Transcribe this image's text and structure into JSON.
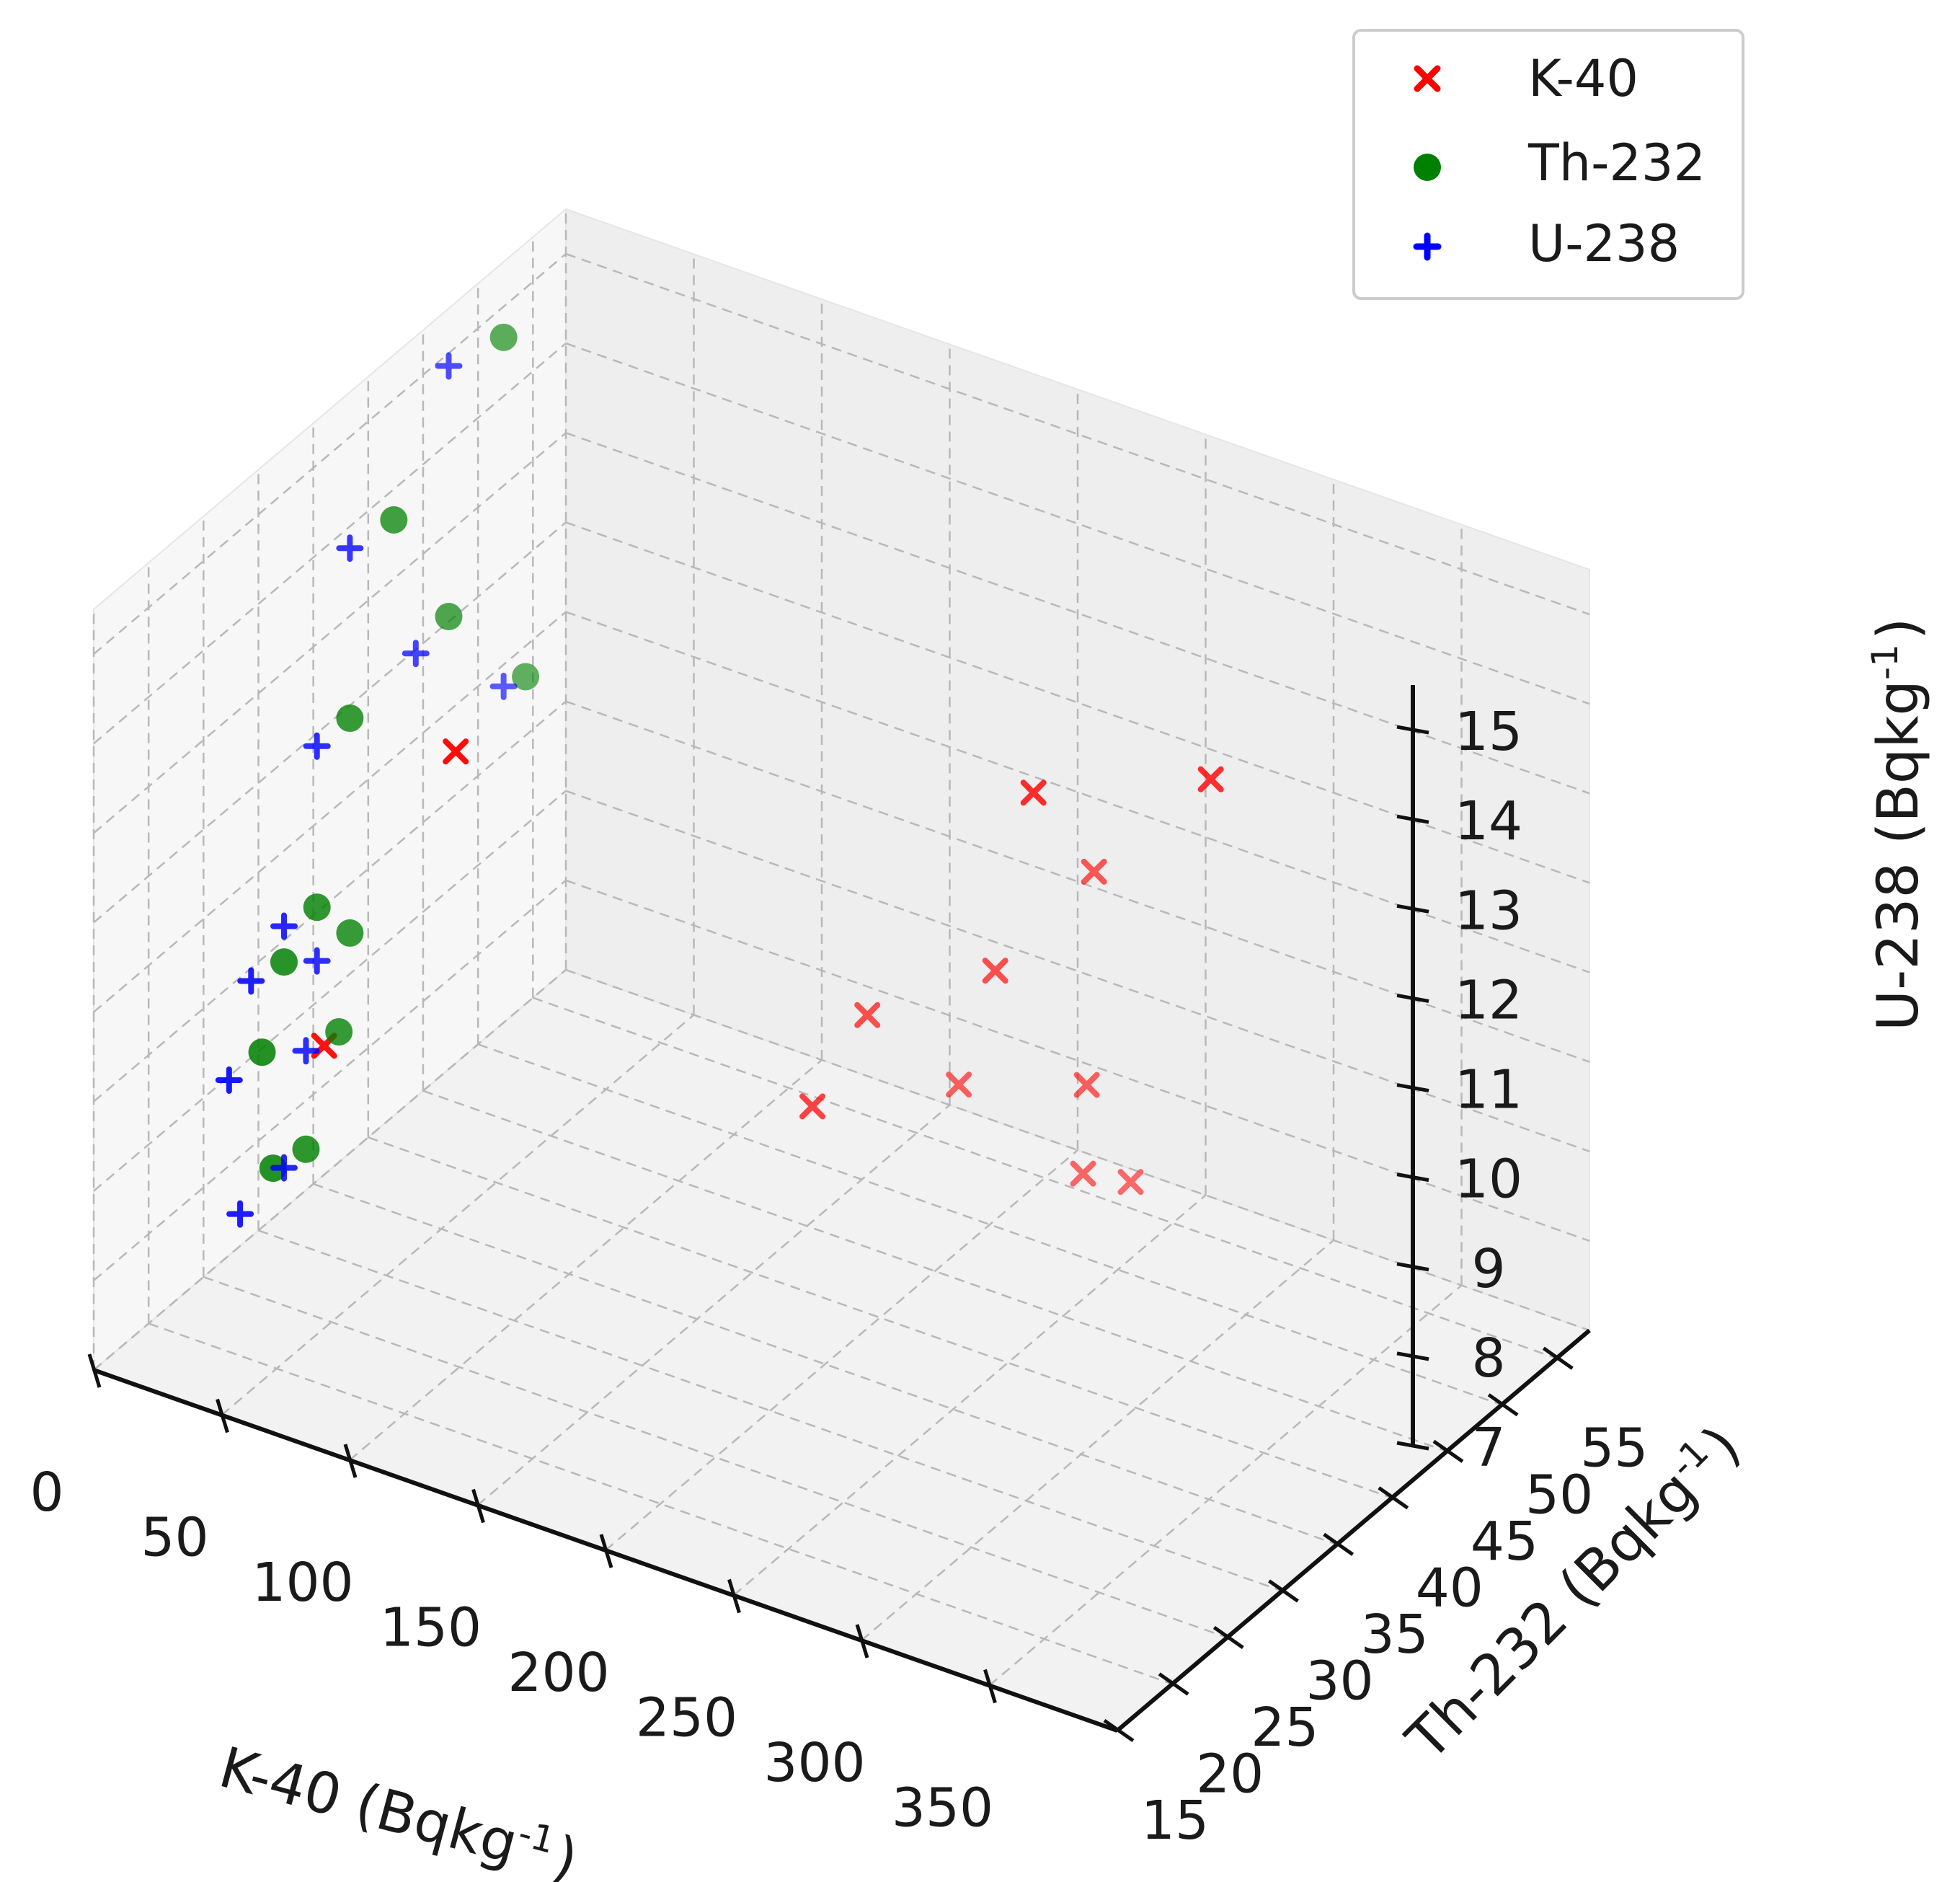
{
  "chart_data": {
    "type": "scatter",
    "title": "",
    "xlabel": "K-40 (Bqkg",
    "xlabel_sup": "-1",
    "xlabel_end": ")",
    "ylabel": "Th-232 (Bqkg",
    "ylabel_sup": "-1",
    "ylabel_end": ")",
    "zlabel": "U-238 (Bqkg",
    "zlabel_sup": "-1",
    "zlabel_end": ")",
    "xlim": [
      0,
      400
    ],
    "ylim": [
      15,
      58
    ],
    "zlim": [
      7,
      15.5
    ],
    "xticks": [
      0,
      50,
      100,
      150,
      200,
      250,
      300,
      350
    ],
    "yticks": [
      15,
      20,
      25,
      30,
      35,
      40,
      45,
      50,
      55
    ],
    "zticks": [
      7,
      8,
      9,
      10,
      11,
      12,
      13,
      14,
      15
    ],
    "grid": true,
    "legend_position": "top-right",
    "series": [
      {
        "name": "K-40",
        "marker": "x",
        "color": "#ff0000",
        "points": [
          {
            "x": 120,
            "y": 20,
            "z": 14.6
          },
          {
            "x": 355,
            "y": 34,
            "z": 15.2
          },
          {
            "x": 290,
            "y": 33,
            "z": 14.5
          },
          {
            "x": 60,
            "y": 22,
            "z": 10.5
          },
          {
            "x": 215,
            "y": 47,
            "z": 10.3
          },
          {
            "x": 245,
            "y": 49,
            "z": 11.5
          },
          {
            "x": 165,
            "y": 47,
            "z": 9.3
          },
          {
            "x": 165,
            "y": 42,
            "z": 8.8
          },
          {
            "x": 175,
            "y": 53,
            "z": 8.0
          },
          {
            "x": 225,
            "y": 53,
            "z": 8.5
          },
          {
            "x": 215,
            "y": 55,
            "z": 7.2
          },
          {
            "x": 225,
            "y": 57,
            "z": 7.0
          }
        ]
      },
      {
        "name": "Th-232",
        "marker": "o",
        "color": "#008000",
        "points": [
          {
            "x": 10,
            "y": 50,
            "z": 15.0
          },
          {
            "x": 10,
            "y": 40,
            "z": 14.0
          },
          {
            "x": 10,
            "y": 45,
            "z": 12.4
          },
          {
            "x": 10,
            "y": 36,
            "z": 12.2
          },
          {
            "x": 10,
            "y": 52,
            "z": 11.0
          },
          {
            "x": 10,
            "y": 33,
            "z": 10.4
          },
          {
            "x": 10,
            "y": 30,
            "z": 10.1
          },
          {
            "x": 10,
            "y": 36,
            "z": 9.8
          },
          {
            "x": 10,
            "y": 28,
            "z": 9.3
          },
          {
            "x": 10,
            "y": 35,
            "z": 8.8
          },
          {
            "x": 10,
            "y": 32,
            "z": 7.8
          },
          {
            "x": 10,
            "y": 29,
            "z": 7.9
          }
        ]
      },
      {
        "name": "U-238",
        "marker": "+",
        "color": "#0000ff",
        "points": [
          {
            "x": 10,
            "y": 45,
            "z": 15.2
          },
          {
            "x": 10,
            "y": 36,
            "z": 14.1
          },
          {
            "x": 10,
            "y": 42,
            "z": 12.3
          },
          {
            "x": 10,
            "y": 33,
            "z": 12.2
          },
          {
            "x": 10,
            "y": 50,
            "z": 11.1
          },
          {
            "x": 10,
            "y": 30,
            "z": 10.5
          },
          {
            "x": 10,
            "y": 27,
            "z": 10.2
          },
          {
            "x": 10,
            "y": 33,
            "z": 9.8
          },
          {
            "x": 10,
            "y": 25,
            "z": 9.3
          },
          {
            "x": 10,
            "y": 32,
            "z": 8.9
          },
          {
            "x": 10,
            "y": 30,
            "z": 7.8
          },
          {
            "x": 10,
            "y": 26,
            "z": 7.7
          }
        ]
      }
    ]
  }
}
